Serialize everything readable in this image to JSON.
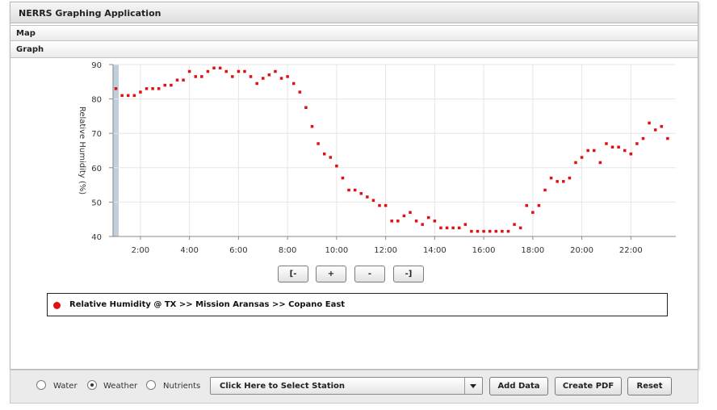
{
  "app": {
    "title": "NERRS Graphing Application"
  },
  "accordion": {
    "map_label": "Map",
    "graph_label": "Graph"
  },
  "chart_data": {
    "type": "scatter",
    "ylabel": "Relative Humidity (%)",
    "ylim": [
      40,
      90
    ],
    "yticks": [
      40,
      50,
      60,
      70,
      80,
      90
    ],
    "xlim": [
      "00:53",
      "23:50"
    ],
    "xtick_labels": [
      "2:00",
      "4:00",
      "6:00",
      "8:00",
      "10:00",
      "12:00",
      "14:00",
      "16:00",
      "18:00",
      "20:00",
      "22:00"
    ],
    "grid": true,
    "marker_color": "#e01010",
    "series": [
      {
        "name": "Relative Humidity @ TX >> Mission Aransas >> Copano East",
        "points": [
          [
            "1:00",
            83
          ],
          [
            "1:15",
            81
          ],
          [
            "1:30",
            81
          ],
          [
            "1:45",
            81
          ],
          [
            "2:00",
            82
          ],
          [
            "2:15",
            83
          ],
          [
            "2:30",
            83
          ],
          [
            "2:45",
            83
          ],
          [
            "3:00",
            84
          ],
          [
            "3:15",
            84
          ],
          [
            "3:30",
            85.5
          ],
          [
            "3:45",
            85.5
          ],
          [
            "4:00",
            88
          ],
          [
            "4:15",
            86.5
          ],
          [
            "4:30",
            86.5
          ],
          [
            "4:45",
            88
          ],
          [
            "5:00",
            89
          ],
          [
            "5:15",
            89
          ],
          [
            "5:30",
            88
          ],
          [
            "5:45",
            86.5
          ],
          [
            "6:00",
            88
          ],
          [
            "6:15",
            88
          ],
          [
            "6:30",
            86.5
          ],
          [
            "6:45",
            84.5
          ],
          [
            "7:00",
            86
          ],
          [
            "7:15",
            87
          ],
          [
            "7:30",
            88
          ],
          [
            "7:45",
            86
          ],
          [
            "8:00",
            86.5
          ],
          [
            "8:15",
            84.5
          ],
          [
            "8:30",
            82
          ],
          [
            "8:45",
            77.5
          ],
          [
            "9:00",
            72
          ],
          [
            "9:15",
            67
          ],
          [
            "9:30",
            64
          ],
          [
            "9:45",
            63
          ],
          [
            "10:00",
            60.5
          ],
          [
            "10:15",
            57
          ],
          [
            "10:30",
            53.5
          ],
          [
            "10:45",
            53.5
          ],
          [
            "11:00",
            52.5
          ],
          [
            "11:15",
            51.5
          ],
          [
            "11:30",
            50.5
          ],
          [
            "11:45",
            49
          ],
          [
            "12:00",
            49
          ],
          [
            "12:15",
            44.5
          ],
          [
            "12:30",
            44.5
          ],
          [
            "12:45",
            46
          ],
          [
            "13:00",
            47
          ],
          [
            "13:15",
            44.5
          ],
          [
            "13:30",
            43.5
          ],
          [
            "13:45",
            45.5
          ],
          [
            "14:00",
            44.5
          ],
          [
            "14:15",
            42.5
          ],
          [
            "14:30",
            42.5
          ],
          [
            "14:45",
            42.5
          ],
          [
            "15:00",
            42.5
          ],
          [
            "15:15",
            43.5
          ],
          [
            "15:30",
            41.5
          ],
          [
            "15:45",
            41.5
          ],
          [
            "16:00",
            41.5
          ],
          [
            "16:15",
            41.5
          ],
          [
            "16:30",
            41.5
          ],
          [
            "16:45",
            41.5
          ],
          [
            "17:00",
            41.5
          ],
          [
            "17:15",
            43.5
          ],
          [
            "17:30",
            42.5
          ],
          [
            "17:45",
            49
          ],
          [
            "18:00",
            47
          ],
          [
            "18:15",
            49
          ],
          [
            "18:30",
            53.5
          ],
          [
            "18:45",
            57
          ],
          [
            "19:00",
            56
          ],
          [
            "19:15",
            56
          ],
          [
            "19:30",
            57
          ],
          [
            "19:45",
            61.5
          ],
          [
            "20:00",
            63
          ],
          [
            "20:15",
            65
          ],
          [
            "20:30",
            65
          ],
          [
            "20:45",
            61.5
          ],
          [
            "21:00",
            67
          ],
          [
            "21:15",
            66
          ],
          [
            "21:30",
            66
          ],
          [
            "21:45",
            65
          ],
          [
            "22:00",
            64
          ],
          [
            "22:15",
            67
          ],
          [
            "22:30",
            68.5
          ],
          [
            "22:45",
            73
          ],
          [
            "23:00",
            71
          ],
          [
            "23:15",
            72
          ],
          [
            "23:30",
            68.5
          ]
        ]
      }
    ]
  },
  "nav": {
    "first": "[-",
    "zoom_in": "+",
    "zoom_out": "-",
    "last": "-]"
  },
  "legend": {
    "text": "Relative Humidity @ TX >> Mission Aransas >> Copano East",
    "color": "#e01010"
  },
  "controls": {
    "radios": [
      {
        "label": "Water",
        "selected": false
      },
      {
        "label": "Weather",
        "selected": true
      },
      {
        "label": "Nutrients",
        "selected": false
      }
    ],
    "station_select": "Click Here to Select Station",
    "add_data": "Add Data",
    "create_pdf": "Create PDF",
    "reset": "Reset"
  }
}
